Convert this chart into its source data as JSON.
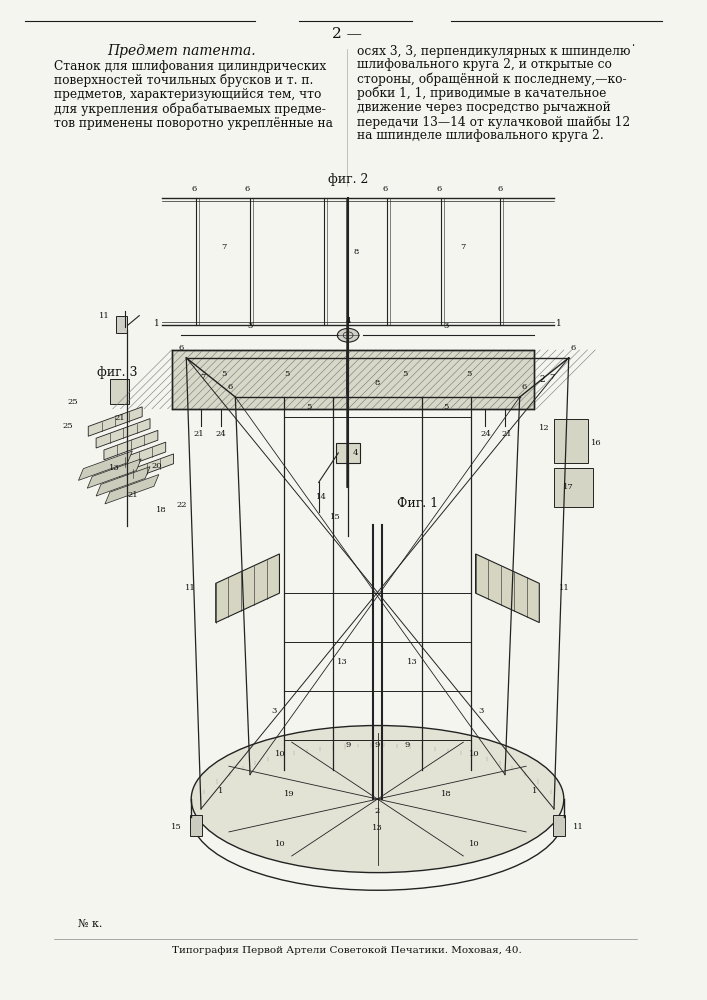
{
  "page_number": "2 —",
  "header_left": "Предмет патента.",
  "text_left_1": "Станок для шлифования цилиндрических",
  "text_left_2": "поверхностей точильных брусков и т. п.",
  "text_left_3": "предметов, характеризующийся тем, что",
  "text_left_4": "для укрепления обрабатываемых предме-",
  "text_left_5": "тов применены поворотно укреплённые на",
  "text_right_1": "осях 3, 3, перпендикулярных к шпинделю˙",
  "text_right_2": "шлифовального круга 2, и открытые со",
  "text_right_3": "стороны, обращённой к последнему,—ко-",
  "text_right_4": "робки 1, 1, приводимые в качательное",
  "text_right_5": "движение через посредство рычажной",
  "text_right_6": "передачи 13—14 от кулачковой шайбы 12",
  "text_right_7": "на шпинделе шлифовального круга 2.",
  "fig2_label": "фиг. 2",
  "fig3_label": "фиг. 3",
  "fig1_label": "Фиг. 1",
  "footer": "Типография Первой Артели Советокой Печатики. Моховая, 40.",
  "sign": "№ к.",
  "bg_color": "#f5f5f0",
  "line_color": "#1a1a1a",
  "text_color": "#111111"
}
